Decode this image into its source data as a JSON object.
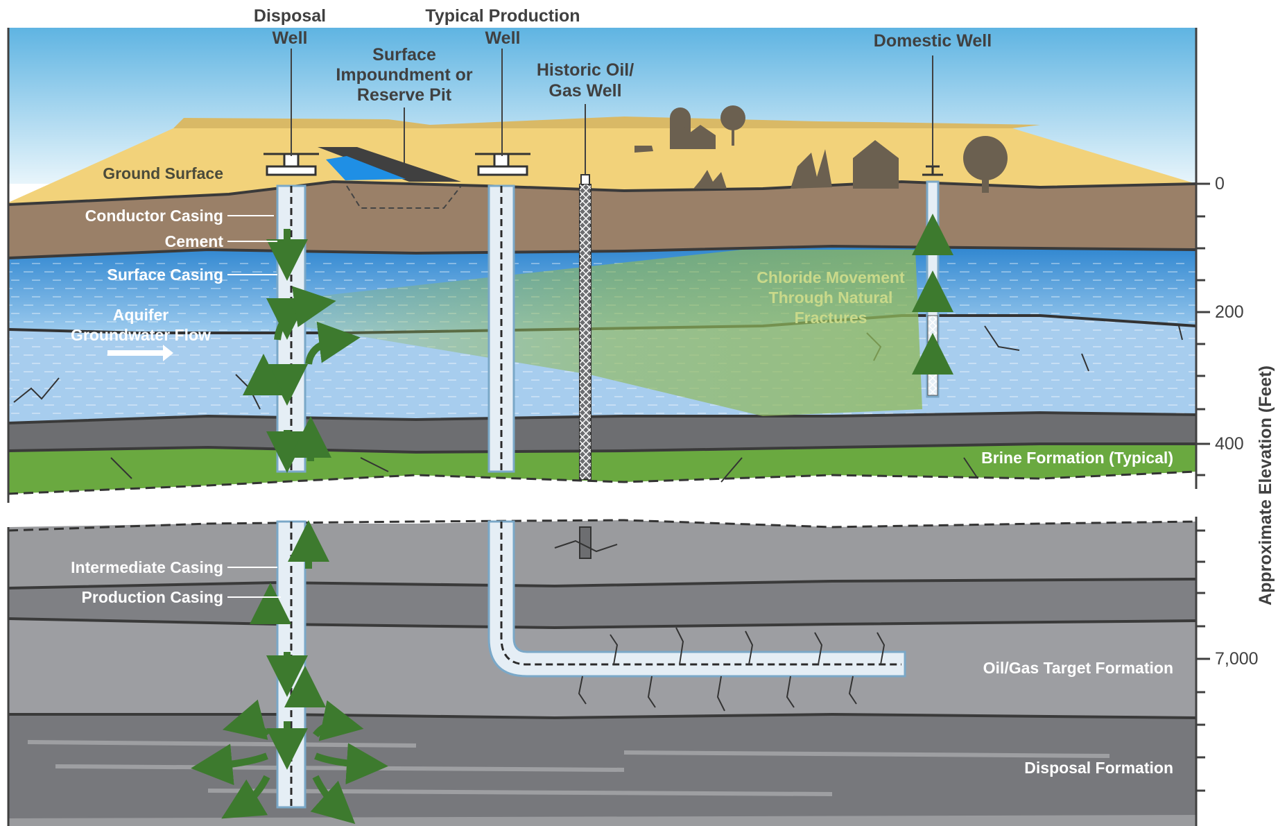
{
  "wells": {
    "disposal": "Disposal Well",
    "typical_production": "Typical Production Well",
    "historic": "Historic Oil/ Gas Well",
    "domestic": "Domestic Well",
    "impoundment": "Surface Impoundment or Reserve Pit"
  },
  "labels": {
    "ground_surface": "Ground Surface",
    "conductor_casing": "Conductor Casing",
    "cement": "Cement",
    "surface_casing": "Surface Casing",
    "aquifer_line1": "Aquifer",
    "aquifer_line2": "Groundwater Flow",
    "chloride_line1": "Chloride Movement",
    "chloride_line2": "Through Natural",
    "chloride_line3": "Fractures",
    "brine_formation": "Brine Formation (Typical)",
    "intermediate_casing": "Intermediate Casing",
    "production_casing": "Production Casing",
    "target_formation": "Oil/Gas Target Formation",
    "disposal_formation": "Disposal Formation"
  },
  "axis": {
    "title": "Approximate Elevation (Feet)",
    "ticks": [
      "0",
      "200",
      "400",
      "7,000"
    ]
  },
  "colors": {
    "sky_top": "#7fc4e6",
    "sand": "#f2d27a",
    "soil": "#9a8068",
    "aquifer": "#3f8fd4",
    "brine": "#6aa940",
    "rock": "#8a8c90",
    "plume": "#8fb85a",
    "arrow": "#3d7a2e"
  }
}
